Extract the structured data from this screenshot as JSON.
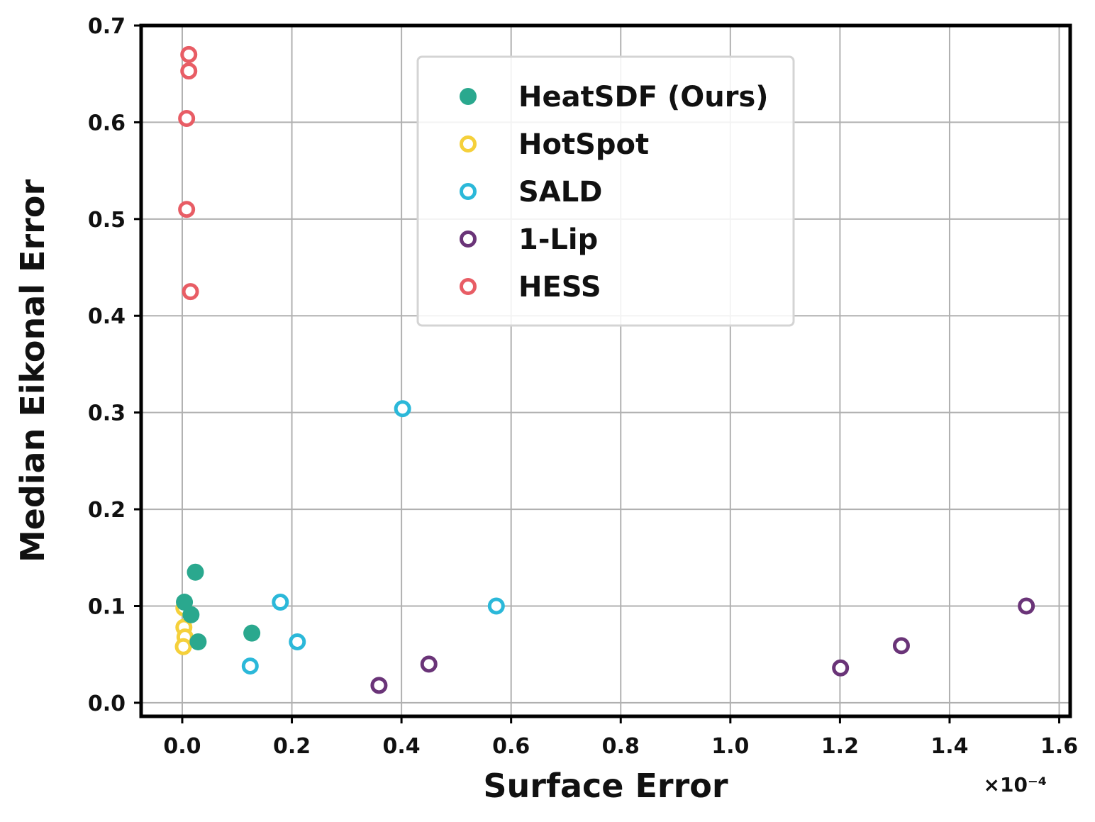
{
  "chart_data": {
    "type": "scatter",
    "xlabel": "Surface Error",
    "ylabel": "Median Eikonal Error",
    "x_offset_label": "×10⁻⁴",
    "xlim": [
      -0.075,
      1.62
    ],
    "ylim": [
      -0.014,
      0.7
    ],
    "xticks": [
      "0.0",
      "0.2",
      "0.4",
      "0.6",
      "0.8",
      "1.0",
      "1.2",
      "1.4",
      "1.6"
    ],
    "xtick_values": [
      0.0,
      0.2,
      0.4,
      0.6,
      0.8,
      1.0,
      1.2,
      1.4,
      1.6
    ],
    "yticks": [
      "0.0",
      "0.1",
      "0.2",
      "0.3",
      "0.4",
      "0.5",
      "0.6",
      "0.7"
    ],
    "ytick_values": [
      0.0,
      0.1,
      0.2,
      0.3,
      0.4,
      0.5,
      0.6,
      0.7
    ],
    "grid": true,
    "legend_position": "top-center",
    "series": [
      {
        "name": "HotSpot",
        "color": "#F5D03B",
        "marker": "open-circle",
        "points": [
          {
            "x": 0.003,
            "y": 0.098
          },
          {
            "x": 0.003,
            "y": 0.078
          },
          {
            "x": 0.005,
            "y": 0.068
          },
          {
            "x": 0.002,
            "y": 0.058
          }
        ]
      },
      {
        "name": "SALD",
        "color": "#2BB8D9",
        "marker": "open-circle",
        "points": [
          {
            "x": 0.402,
            "y": 0.304
          },
          {
            "x": 0.179,
            "y": 0.104
          },
          {
            "x": 0.573,
            "y": 0.1
          },
          {
            "x": 0.21,
            "y": 0.063
          },
          {
            "x": 0.124,
            "y": 0.038
          }
        ]
      },
      {
        "name": "1-Lip",
        "color": "#6A3478",
        "marker": "open-circle",
        "points": [
          {
            "x": 1.54,
            "y": 0.1
          },
          {
            "x": 1.312,
            "y": 0.059
          },
          {
            "x": 1.201,
            "y": 0.036
          },
          {
            "x": 0.45,
            "y": 0.04
          },
          {
            "x": 0.359,
            "y": 0.018
          }
        ]
      },
      {
        "name": "HESS",
        "color": "#E85D65",
        "marker": "open-circle",
        "points": [
          {
            "x": 0.012,
            "y": 0.67
          },
          {
            "x": 0.012,
            "y": 0.653
          },
          {
            "x": 0.008,
            "y": 0.604
          },
          {
            "x": 0.008,
            "y": 0.51
          },
          {
            "x": 0.015,
            "y": 0.425
          }
        ]
      },
      {
        "name": "HeatSDF (Ours)",
        "color": "#2AA88E",
        "marker": "filled-circle",
        "points": [
          {
            "x": 0.024,
            "y": 0.135
          },
          {
            "x": 0.004,
            "y": 0.104
          },
          {
            "x": 0.016,
            "y": 0.091
          },
          {
            "x": 0.127,
            "y": 0.072
          },
          {
            "x": 0.029,
            "y": 0.063
          }
        ]
      }
    ],
    "legend_order": [
      "HeatSDF (Ours)",
      "HotSpot",
      "SALD",
      "1-Lip",
      "HESS"
    ]
  }
}
